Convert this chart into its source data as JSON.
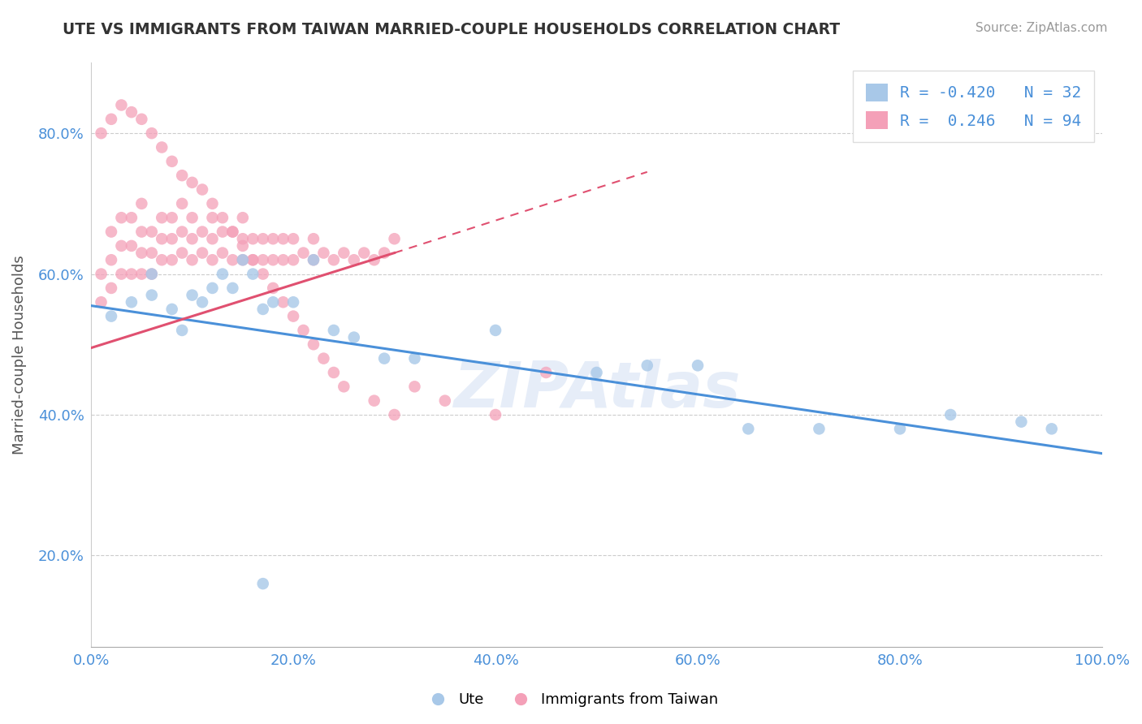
{
  "title": "UTE VS IMMIGRANTS FROM TAIWAN MARRIED-COUPLE HOUSEHOLDS CORRELATION CHART",
  "source": "Source: ZipAtlas.com",
  "ylabel": "Married-couple Households",
  "legend_blue_r": "-0.420",
  "legend_blue_n": "32",
  "legend_pink_r": "0.246",
  "legend_pink_n": "94",
  "legend_label_blue": "Ute",
  "legend_label_pink": "Immigrants from Taiwan",
  "xlim": [
    0.0,
    1.0
  ],
  "ylim": [
    0.07,
    0.9
  ],
  "xticks": [
    0.0,
    0.2,
    0.4,
    0.6,
    0.8,
    1.0
  ],
  "yticks": [
    0.2,
    0.4,
    0.6,
    0.8
  ],
  "ytick_labels": [
    "20.0%",
    "40.0%",
    "60.0%",
    "80.0%"
  ],
  "xtick_labels": [
    "0.0%",
    "20.0%",
    "40.0%",
    "60.0%",
    "80.0%",
    "100.0%"
  ],
  "blue_color": "#a8c8e8",
  "pink_color": "#f4a0b8",
  "blue_line_color": "#4a90d9",
  "pink_line_color": "#e05070",
  "watermark": "ZIPAtlas",
  "blue_scatter_x": [
    0.02,
    0.04,
    0.06,
    0.06,
    0.08,
    0.09,
    0.1,
    0.11,
    0.12,
    0.13,
    0.14,
    0.15,
    0.16,
    0.17,
    0.18,
    0.2,
    0.22,
    0.24,
    0.26,
    0.29,
    0.32,
    0.4,
    0.5,
    0.55,
    0.6,
    0.65,
    0.72,
    0.8,
    0.85,
    0.92,
    0.95,
    0.17
  ],
  "blue_scatter_y": [
    0.54,
    0.56,
    0.6,
    0.57,
    0.55,
    0.52,
    0.57,
    0.56,
    0.58,
    0.6,
    0.58,
    0.62,
    0.6,
    0.55,
    0.56,
    0.56,
    0.62,
    0.52,
    0.51,
    0.48,
    0.48,
    0.52,
    0.46,
    0.47,
    0.47,
    0.38,
    0.38,
    0.38,
    0.4,
    0.39,
    0.38,
    0.16
  ],
  "pink_scatter_x": [
    0.01,
    0.01,
    0.02,
    0.02,
    0.02,
    0.03,
    0.03,
    0.03,
    0.04,
    0.04,
    0.04,
    0.05,
    0.05,
    0.05,
    0.05,
    0.06,
    0.06,
    0.06,
    0.07,
    0.07,
    0.07,
    0.08,
    0.08,
    0.08,
    0.09,
    0.09,
    0.09,
    0.1,
    0.1,
    0.1,
    0.11,
    0.11,
    0.12,
    0.12,
    0.12,
    0.13,
    0.13,
    0.14,
    0.14,
    0.15,
    0.15,
    0.15,
    0.16,
    0.16,
    0.17,
    0.17,
    0.18,
    0.18,
    0.19,
    0.19,
    0.2,
    0.2,
    0.21,
    0.22,
    0.22,
    0.23,
    0.24,
    0.25,
    0.26,
    0.27,
    0.28,
    0.29,
    0.3,
    0.01,
    0.02,
    0.03,
    0.04,
    0.05,
    0.06,
    0.07,
    0.08,
    0.09,
    0.1,
    0.11,
    0.12,
    0.13,
    0.14,
    0.15,
    0.16,
    0.17,
    0.18,
    0.19,
    0.2,
    0.21,
    0.22,
    0.23,
    0.24,
    0.25,
    0.28,
    0.3,
    0.32,
    0.35,
    0.4,
    0.45
  ],
  "pink_scatter_y": [
    0.56,
    0.6,
    0.58,
    0.62,
    0.66,
    0.6,
    0.64,
    0.68,
    0.6,
    0.64,
    0.68,
    0.6,
    0.63,
    0.66,
    0.7,
    0.6,
    0.63,
    0.66,
    0.62,
    0.65,
    0.68,
    0.62,
    0.65,
    0.68,
    0.63,
    0.66,
    0.7,
    0.62,
    0.65,
    0.68,
    0.63,
    0.66,
    0.62,
    0.65,
    0.68,
    0.63,
    0.66,
    0.62,
    0.66,
    0.62,
    0.65,
    0.68,
    0.62,
    0.65,
    0.62,
    0.65,
    0.62,
    0.65,
    0.62,
    0.65,
    0.62,
    0.65,
    0.63,
    0.62,
    0.65,
    0.63,
    0.62,
    0.63,
    0.62,
    0.63,
    0.62,
    0.63,
    0.65,
    0.8,
    0.82,
    0.84,
    0.83,
    0.82,
    0.8,
    0.78,
    0.76,
    0.74,
    0.73,
    0.72,
    0.7,
    0.68,
    0.66,
    0.64,
    0.62,
    0.6,
    0.58,
    0.56,
    0.54,
    0.52,
    0.5,
    0.48,
    0.46,
    0.44,
    0.42,
    0.4,
    0.44,
    0.42,
    0.4,
    0.46
  ],
  "blue_line_x0": 0.0,
  "blue_line_y0": 0.555,
  "blue_line_x1": 1.0,
  "blue_line_y1": 0.345,
  "pink_line_x0": 0.0,
  "pink_line_y0": 0.495,
  "pink_line_x1_solid": 0.3,
  "pink_line_y1_solid": 0.63,
  "pink_line_x1_dash": 0.55,
  "pink_line_y1_dash": 0.745,
  "figsize": [
    14.06,
    8.92
  ],
  "dpi": 100
}
